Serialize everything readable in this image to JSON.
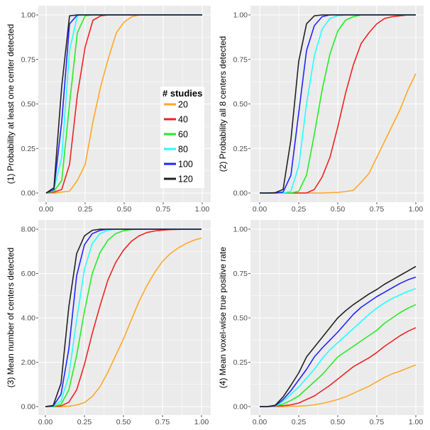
{
  "chart_data": [
    {
      "type": "line",
      "ylabel": "(1) Probability at least one center detected",
      "xlabel": "",
      "xlim": [
        0,
        1
      ],
      "ylim": [
        0,
        1
      ],
      "xticks": [
        "0.00",
        "0.25",
        "0.50",
        "0.75",
        "1.00"
      ],
      "yticks": [
        "0.00",
        "0.25",
        "0.50",
        "0.75",
        "1.00"
      ],
      "x": [
        0,
        0.05,
        0.1,
        0.15,
        0.2,
        0.25,
        0.3,
        0.35,
        0.4,
        0.45,
        0.5,
        0.55,
        0.6,
        0.65,
        0.7,
        0.75,
        0.8,
        0.85,
        0.9,
        0.95,
        1.0
      ],
      "series": [
        {
          "name": "20",
          "values": [
            0,
            0,
            0.005,
            0.01,
            0.07,
            0.16,
            0.4,
            0.6,
            0.76,
            0.9,
            0.96,
            0.99,
            1,
            1,
            1,
            1,
            1,
            1,
            1,
            1,
            1
          ]
        },
        {
          "name": "40",
          "values": [
            0,
            0.005,
            0.02,
            0.16,
            0.55,
            0.82,
            0.97,
            0.995,
            1,
            1,
            1,
            1,
            1,
            1,
            1,
            1,
            1,
            1,
            1,
            1,
            1
          ]
        },
        {
          "name": "60",
          "values": [
            0,
            0.01,
            0.07,
            0.5,
            0.9,
            0.995,
            1,
            1,
            1,
            1,
            1,
            1,
            1,
            1,
            1,
            1,
            1,
            1,
            1,
            1,
            1
          ]
        },
        {
          "name": "80",
          "values": [
            0,
            0.02,
            0.2,
            0.8,
            0.995,
            1,
            1,
            1,
            1,
            1,
            1,
            1,
            1,
            1,
            1,
            1,
            1,
            1,
            1,
            1,
            1
          ]
        },
        {
          "name": "100",
          "values": [
            0,
            0.02,
            0.4,
            0.95,
            1,
            1,
            1,
            1,
            1,
            1,
            1,
            1,
            1,
            1,
            1,
            1,
            1,
            1,
            1,
            1,
            1
          ]
        },
        {
          "name": "120",
          "values": [
            0,
            0.03,
            0.6,
            0.995,
            1,
            1,
            1,
            1,
            1,
            1,
            1,
            1,
            1,
            1,
            1,
            1,
            1,
            1,
            1,
            1,
            1
          ]
        }
      ],
      "legend": {
        "title": "# studies",
        "placement": "center-right",
        "entries": [
          "20",
          "40",
          "60",
          "80",
          "100",
          "120"
        ]
      }
    },
    {
      "type": "line",
      "ylabel": "(2) Probability all 8 centers detected",
      "xlabel": "",
      "xlim": [
        0,
        1
      ],
      "ylim": [
        0,
        1
      ],
      "xticks": [
        "0.00",
        "0.25",
        "0.50",
        "0.75",
        "1.00"
      ],
      "yticks": [
        "0.00",
        "0.25",
        "0.50",
        "0.75",
        "1.00"
      ],
      "x": [
        0,
        0.05,
        0.1,
        0.15,
        0.2,
        0.25,
        0.3,
        0.35,
        0.4,
        0.45,
        0.5,
        0.55,
        0.6,
        0.65,
        0.7,
        0.75,
        0.8,
        0.85,
        0.9,
        0.95,
        1.0
      ],
      "series": [
        {
          "name": "20",
          "values": [
            0,
            0,
            0,
            0,
            0,
            0,
            0,
            0,
            0,
            0.002,
            0.003,
            0.008,
            0.015,
            0.06,
            0.11,
            0.2,
            0.29,
            0.38,
            0.47,
            0.58,
            0.67
          ]
        },
        {
          "name": "40",
          "values": [
            0,
            0,
            0,
            0,
            0,
            0,
            0,
            0.02,
            0.09,
            0.2,
            0.37,
            0.56,
            0.72,
            0.84,
            0.9,
            0.95,
            0.98,
            0.99,
            0.995,
            1,
            1
          ]
        },
        {
          "name": "60",
          "values": [
            0,
            0,
            0,
            0,
            0,
            0.01,
            0.1,
            0.33,
            0.58,
            0.78,
            0.91,
            0.97,
            0.99,
            1,
            1,
            1,
            1,
            1,
            1,
            1,
            1
          ]
        },
        {
          "name": "80",
          "values": [
            0,
            0,
            0,
            0,
            0.01,
            0.15,
            0.5,
            0.77,
            0.92,
            0.98,
            0.995,
            1,
            1,
            1,
            1,
            1,
            1,
            1,
            1,
            1,
            1
          ]
        },
        {
          "name": "100",
          "values": [
            0,
            0,
            0,
            0.005,
            0.1,
            0.45,
            0.8,
            0.94,
            0.99,
            1,
            1,
            1,
            1,
            1,
            1,
            1,
            1,
            1,
            1,
            1,
            1
          ]
        },
        {
          "name": "120",
          "values": [
            0,
            0,
            0.002,
            0.02,
            0.3,
            0.74,
            0.95,
            0.995,
            1,
            1,
            1,
            1,
            1,
            1,
            1,
            1,
            1,
            1,
            1,
            1,
            1
          ]
        }
      ]
    },
    {
      "type": "line",
      "ylabel": "(3) Mean number of centers detected",
      "xlabel": "",
      "xlim": [
        0,
        1
      ],
      "ylim": [
        0,
        8
      ],
      "xticks": [
        "0.00",
        "0.25",
        "0.50",
        "0.75",
        "1.00"
      ],
      "yticks": [
        "0.00",
        "2.00",
        "4.00",
        "6.00",
        "8.00"
      ],
      "x": [
        0,
        0.05,
        0.1,
        0.15,
        0.2,
        0.25,
        0.3,
        0.35,
        0.4,
        0.45,
        0.5,
        0.55,
        0.6,
        0.65,
        0.7,
        0.75,
        0.8,
        0.85,
        0.9,
        0.95,
        1.0
      ],
      "series": [
        {
          "name": "20",
          "values": [
            0,
            0,
            0,
            0.02,
            0.07,
            0.18,
            0.45,
            0.9,
            1.55,
            2.3,
            3.05,
            3.9,
            4.75,
            5.45,
            6.05,
            6.55,
            6.9,
            7.15,
            7.35,
            7.5,
            7.6
          ]
        },
        {
          "name": "40",
          "values": [
            0,
            0,
            0.03,
            0.2,
            0.75,
            1.9,
            3.3,
            4.55,
            5.7,
            6.5,
            7.05,
            7.45,
            7.7,
            7.85,
            7.92,
            7.96,
            7.98,
            7.99,
            8,
            8,
            8
          ]
        },
        {
          "name": "60",
          "values": [
            0,
            0,
            0.1,
            0.75,
            2.3,
            4.3,
            6,
            6.95,
            7.5,
            7.8,
            7.93,
            7.98,
            8,
            8,
            8,
            8,
            8,
            8,
            8,
            8,
            8
          ]
        },
        {
          "name": "80",
          "values": [
            0,
            0.02,
            0.25,
            1.4,
            3.9,
            6.2,
            7.35,
            7.8,
            7.95,
            8,
            8,
            8,
            8,
            8,
            8,
            8,
            8,
            8,
            8,
            8,
            8
          ]
        },
        {
          "name": "100",
          "values": [
            0,
            0.03,
            0.55,
            2.6,
            5.9,
            7.3,
            7.8,
            7.95,
            8,
            8,
            8,
            8,
            8,
            8,
            8,
            8,
            8,
            8,
            8,
            8,
            8
          ]
        },
        {
          "name": "120",
          "values": [
            0,
            0.05,
            1.05,
            4.5,
            6.9,
            7.7,
            7.95,
            8,
            8,
            8,
            8,
            8,
            8,
            8,
            8,
            8,
            8,
            8,
            8,
            8,
            8
          ]
        }
      ]
    },
    {
      "type": "line",
      "ylabel": "(4) Mean voxel-wise true positive rate",
      "xlabel": "",
      "xlim": [
        0,
        1
      ],
      "ylim": [
        0,
        1
      ],
      "xticks": [
        "0.00",
        "0.25",
        "0.50",
        "0.75",
        "1.00"
      ],
      "yticks": [
        "0.00",
        "0.25",
        "0.50",
        "0.75",
        "1.00"
      ],
      "x": [
        0,
        0.05,
        0.1,
        0.15,
        0.2,
        0.25,
        0.3,
        0.35,
        0.4,
        0.45,
        0.5,
        0.55,
        0.6,
        0.65,
        0.7,
        0.75,
        0.8,
        0.85,
        0.9,
        0.95,
        1.0
      ],
      "series": [
        {
          "name": "20",
          "values": [
            0,
            0,
            0,
            0.001,
            0.002,
            0.003,
            0.005,
            0.01,
            0.018,
            0.028,
            0.04,
            0.055,
            0.075,
            0.095,
            0.115,
            0.14,
            0.165,
            0.185,
            0.2,
            0.218,
            0.235
          ]
        },
        {
          "name": "40",
          "values": [
            0,
            0,
            0.002,
            0.005,
            0.01,
            0.02,
            0.04,
            0.06,
            0.09,
            0.12,
            0.155,
            0.19,
            0.225,
            0.25,
            0.275,
            0.305,
            0.34,
            0.37,
            0.4,
            0.425,
            0.445
          ]
        },
        {
          "name": "60",
          "values": [
            0,
            0,
            0.003,
            0.015,
            0.035,
            0.06,
            0.1,
            0.14,
            0.18,
            0.23,
            0.28,
            0.31,
            0.34,
            0.37,
            0.4,
            0.43,
            0.47,
            0.5,
            0.53,
            0.555,
            0.575
          ]
        },
        {
          "name": "80",
          "values": [
            0,
            0,
            0.004,
            0.03,
            0.07,
            0.11,
            0.16,
            0.21,
            0.27,
            0.32,
            0.36,
            0.4,
            0.44,
            0.48,
            0.52,
            0.555,
            0.585,
            0.61,
            0.63,
            0.65,
            0.665
          ]
        },
        {
          "name": "100",
          "values": [
            0,
            0,
            0.005,
            0.04,
            0.09,
            0.15,
            0.21,
            0.28,
            0.33,
            0.375,
            0.42,
            0.47,
            0.52,
            0.56,
            0.59,
            0.62,
            0.645,
            0.67,
            0.695,
            0.715,
            0.73
          ]
        },
        {
          "name": "120",
          "values": [
            0,
            0,
            0.008,
            0.055,
            0.12,
            0.19,
            0.28,
            0.335,
            0.39,
            0.445,
            0.5,
            0.54,
            0.575,
            0.605,
            0.635,
            0.66,
            0.69,
            0.715,
            0.74,
            0.765,
            0.79
          ]
        }
      ]
    }
  ],
  "colors": {
    "20": "#ffa726",
    "40": "#ee2222",
    "60": "#22ee22",
    "80": "#22ffff",
    "100": "#2222ff",
    "120": "#222222",
    "panel_bg": "#ebebeb",
    "grid": "#ffffff"
  }
}
